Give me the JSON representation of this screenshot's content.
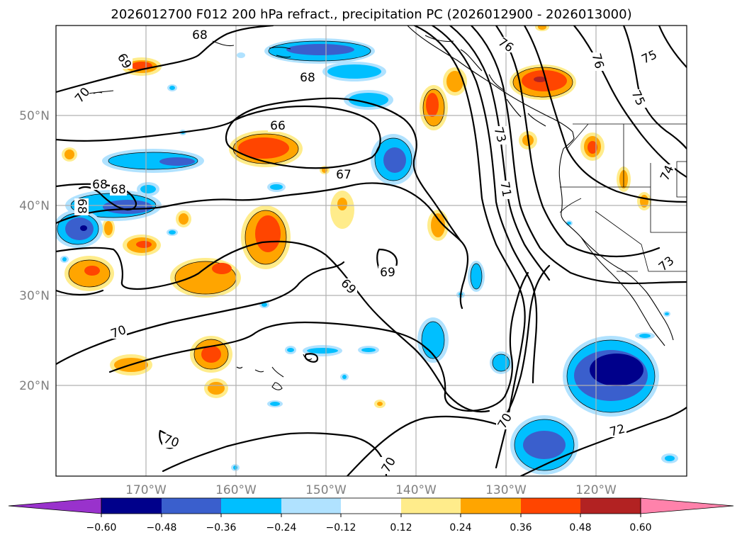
{
  "chart_data": {
    "type": "contour-map",
    "title": "2026012700 F012 200 hPa refract., precipitation PC (2026012900 - 2026013000)",
    "region": {
      "lon_range": [
        -180,
        -110
      ],
      "lat_range": [
        10,
        60
      ]
    },
    "x_ticks": [
      {
        "value": -170,
        "label": "170°W"
      },
      {
        "value": -160,
        "label": "160°W"
      },
      {
        "value": -150,
        "label": "150°W"
      },
      {
        "value": -140,
        "label": "140°W"
      },
      {
        "value": -130,
        "label": "130°W"
      },
      {
        "value": -120,
        "label": "120°W"
      }
    ],
    "y_ticks": [
      {
        "value": 50,
        "label": "50°N"
      },
      {
        "value": 40,
        "label": "40°N"
      },
      {
        "value": 30,
        "label": "30°N"
      },
      {
        "value": 20,
        "label": "20°N"
      }
    ],
    "grid": true,
    "colorbar": {
      "extend": "both",
      "ticks": [
        "−0.60",
        "−0.48",
        "−0.36",
        "−0.24",
        "−0.12",
        "0.12",
        "0.24",
        "0.36",
        "0.48",
        "0.60"
      ],
      "colors": [
        "#9932cc",
        "#00008b",
        "#3a5fcd",
        "#00bfff",
        "#b0e2ff",
        "#ffffff",
        "#ffec8b",
        "#ffa500",
        "#ff4500",
        "#b22222",
        "#ff82ab"
      ]
    },
    "contour_labels": [
      {
        "text": "68",
        "lon": -160.6,
        "lat": 58.9
      },
      {
        "text": "69",
        "lon": -172.4,
        "lat": 56.5
      },
      {
        "text": "70",
        "lon": -177.0,
        "lat": 52.2
      },
      {
        "text": "68",
        "lon": -150.2,
        "lat": 54.3
      },
      {
        "text": "66",
        "lon": -152.7,
        "lat": 47.0
      },
      {
        "text": "67",
        "lon": -147.9,
        "lat": 43.4
      },
      {
        "text": "68",
        "lon": -175.0,
        "lat": 42.2
      },
      {
        "text": "68",
        "lon": -172.9,
        "lat": 41.8
      },
      {
        "text": "68",
        "lon": -177.2,
        "lat": 39.9
      },
      {
        "text": "69",
        "lon": -141.5,
        "lat": 33.1
      },
      {
        "text": "69",
        "lon": -148.6,
        "lat": 30.9
      },
      {
        "text": "70",
        "lon": -172.9,
        "lat": 25.8
      },
      {
        "text": "70",
        "lon": -167.0,
        "lat": 14.3
      },
      {
        "text": "70",
        "lon": -140.9,
        "lat": 11.3
      },
      {
        "text": "70",
        "lon": -129.9,
        "lat": 16.4
      },
      {
        "text": "72",
        "lon": -122.4,
        "lat": 15.1
      },
      {
        "text": "73",
        "lon": -130.5,
        "lat": 48.5
      },
      {
        "text": "71",
        "lon": -129.5,
        "lat": 41.5
      },
      {
        "text": "76",
        "lon": -130.0,
        "lat": 58.5
      },
      {
        "text": "76",
        "lon": -120.0,
        "lat": 56.3
      },
      {
        "text": "75",
        "lon": -115.5,
        "lat": 57.0
      },
      {
        "text": "75",
        "lon": -115.2,
        "lat": 52.0
      },
      {
        "text": "74",
        "lon": -112.3,
        "lat": 43.6
      },
      {
        "text": "73",
        "lon": -112.0,
        "lat": 32.7
      }
    ]
  }
}
